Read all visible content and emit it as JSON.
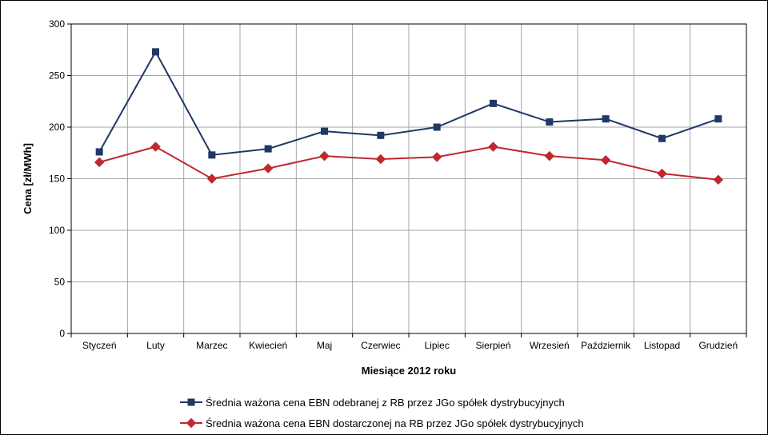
{
  "chart_data": {
    "type": "line",
    "title": "",
    "xlabel": "Miesiące 2012 roku",
    "ylabel": "Cena [zł/MWh]",
    "ylim": [
      0,
      300
    ],
    "yticks": [
      "0",
      "50",
      "100",
      "150",
      "200",
      "250",
      "300"
    ],
    "grid": true,
    "legend_position": "bottom",
    "categories": [
      "Styczeń",
      "Luty",
      "Marzec",
      "Kwiecień",
      "Maj",
      "Czerwiec",
      "Lipiec",
      "Sierpień",
      "Wrzesień",
      "Październik",
      "Listopad",
      "Grudzień"
    ],
    "series": [
      {
        "name": "Średnia ważona cena EBN odebranej z RB przez JGo spółek dystrybucyjnych",
        "color": "#1f3864",
        "marker": "square",
        "values": [
          176,
          273,
          173,
          179,
          196,
          192,
          200,
          223,
          205,
          208,
          189,
          208
        ]
      },
      {
        "name": "Średnia ważona cena EBN dostarczonej na RB przez JGo spółek dystrybucyjnych",
        "color": "#c0282d",
        "marker": "diamond",
        "values": [
          166,
          181,
          150,
          160,
          172,
          169,
          171,
          181,
          172,
          168,
          155,
          149
        ]
      }
    ]
  }
}
